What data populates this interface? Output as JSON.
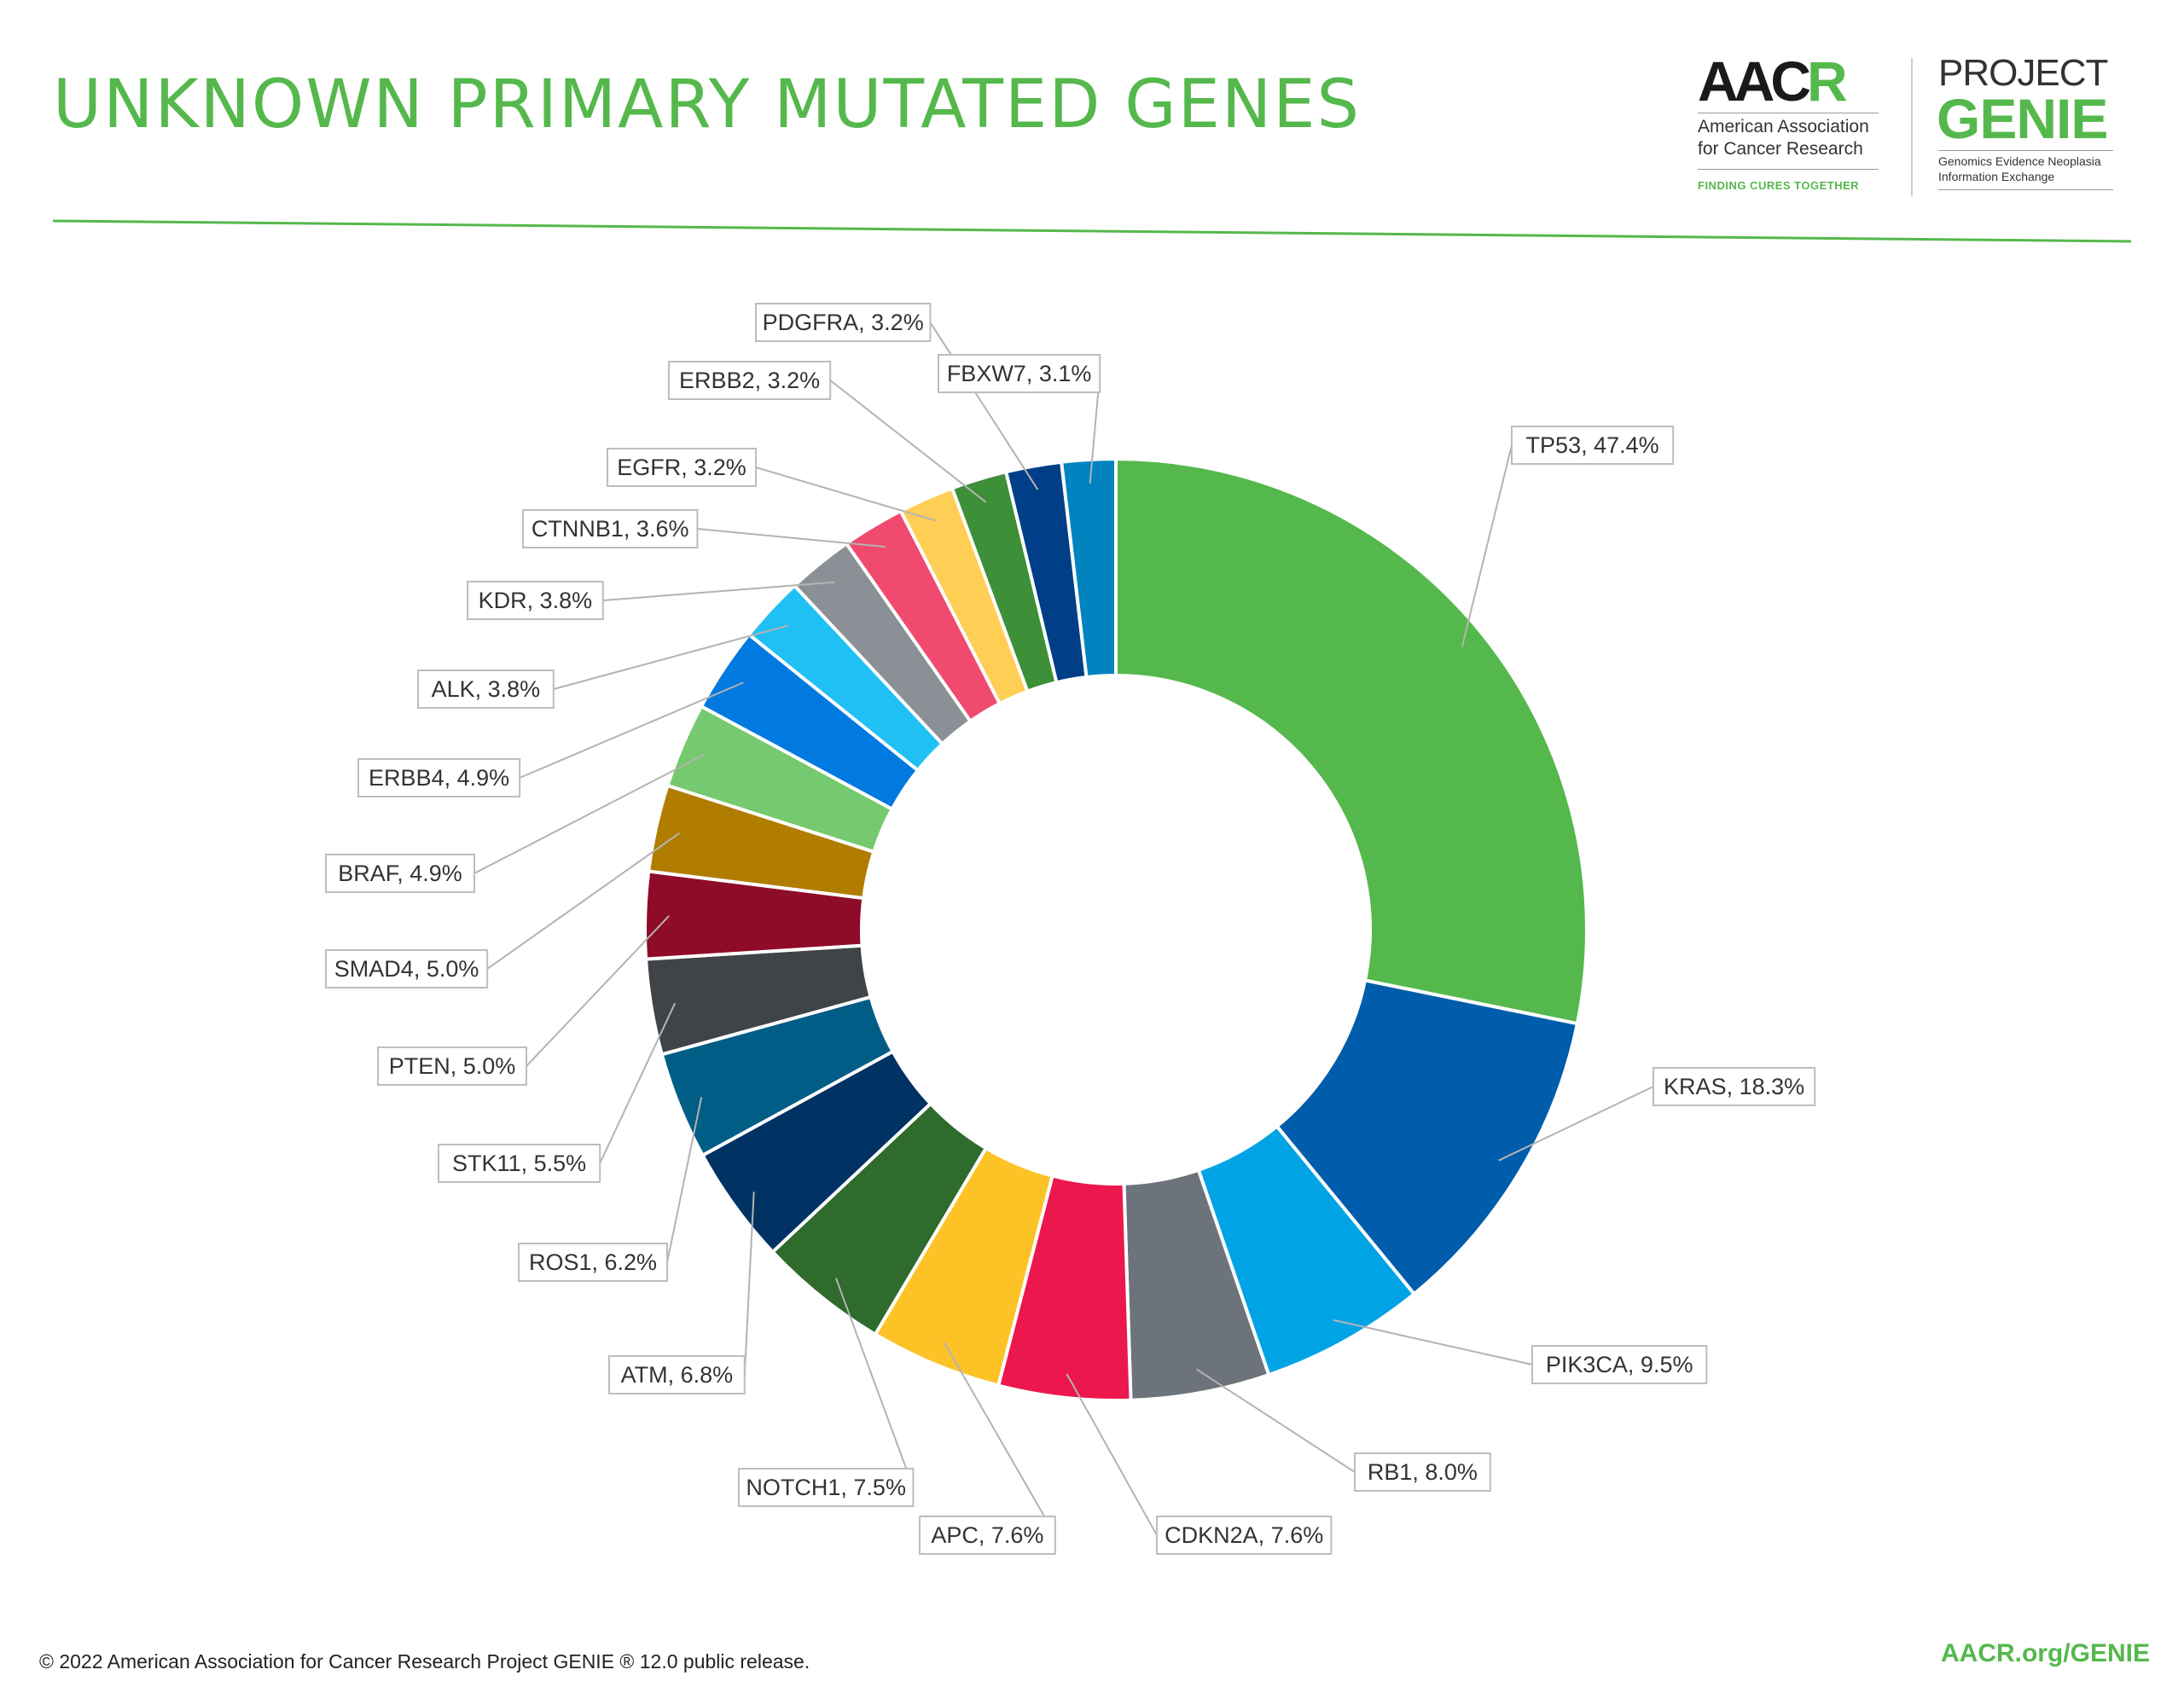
{
  "header": {
    "title": "UNKNOWN PRIMARY MUTATED GENES"
  },
  "logos": {
    "aacr_mark": "AACR",
    "aacr_name": "American Association\nfor Cancer Research",
    "aacr_tagline": "FINDING CURES TOGETHER",
    "genie_project": "PROJECT",
    "genie_name": "GENIE",
    "genie_subtitle": "Genomics Evidence Neoplasia\nInformation Exchange"
  },
  "chart_data": {
    "type": "pie",
    "donut": true,
    "title": "UNKNOWN PRIMARY MUTATED GENES",
    "labels": [
      "TP53",
      "KRAS",
      "PIK3CA",
      "RB1",
      "CDKN2A",
      "APC",
      "NOTCH1",
      "ATM",
      "ROS1",
      "STK11",
      "PTEN",
      "SMAD4",
      "BRAF",
      "ERBB4",
      "ALK",
      "KDR",
      "CTNNB1",
      "EGFR",
      "ERBB2",
      "PDGFRA",
      "FBXW7"
    ],
    "values": [
      47.4,
      18.3,
      9.5,
      8.0,
      7.6,
      7.6,
      7.5,
      6.8,
      6.2,
      5.5,
      5.0,
      5.0,
      4.9,
      4.9,
      3.8,
      3.8,
      3.6,
      3.2,
      3.2,
      3.2,
      3.1
    ],
    "value_labels": [
      "TP53, 47.4%",
      "KRAS, 18.3%",
      "PIK3CA, 9.5%",
      "RB1, 8.0%",
      "CDKN2A, 7.6%",
      "APC, 7.6%",
      "NOTCH1, 7.5%",
      "ATM, 6.8%",
      "ROS1, 6.2%",
      "STK11, 5.5%",
      "PTEN, 5.0%",
      "SMAD4, 5.0%",
      "BRAF, 4.9%",
      "ERBB4, 4.9%",
      "ALK, 3.8%",
      "KDR, 3.8%",
      "CTNNB1, 3.6%",
      "EGFR, 3.2%",
      "ERBB2, 3.2%",
      "PDGFRA, 3.2%",
      "FBXW7, 3.1%"
    ],
    "colors": [
      "#55b84c",
      "#005dab",
      "#00a4e4",
      "#6c737a",
      "#ec174c",
      "#fdc326",
      "#2e6b2c",
      "#003263",
      "#005e86",
      "#404448",
      "#8f0c28",
      "#b07d00",
      "#75c96e",
      "#0079e0",
      "#20c0f4",
      "#8a9096",
      "#f04a6e",
      "#ffce55",
      "#3d8f38",
      "#003f87",
      "#0083bf"
    ],
    "start_direction": "12 o'clock",
    "order": "clockwise",
    "legend": "none (leader-line labels)"
  },
  "footer": {
    "copyright": "© 2022 American Association for Cancer Research Project GENIE ® 12.0 public release.",
    "link": "AACR.org/GENIE"
  }
}
